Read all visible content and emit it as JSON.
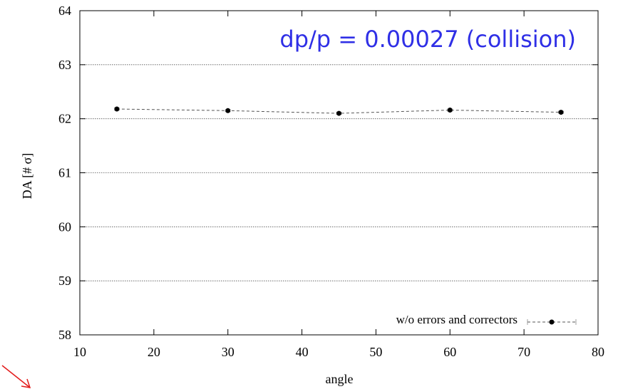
{
  "chart_data": {
    "type": "line",
    "title": "",
    "xlabel": "angle",
    "ylabel": "DA [# σ]",
    "xlim": [
      10,
      80
    ],
    "ylim": [
      58,
      64
    ],
    "xticks": [
      10,
      20,
      30,
      40,
      50,
      60,
      70,
      80
    ],
    "yticks": [
      58,
      59,
      60,
      61,
      62,
      63,
      64
    ],
    "grid": "horizontal-dotted",
    "legend_position": "bottom-right",
    "annotation": "dp/p = 0.00027 (collision)",
    "series": [
      {
        "name": "w/o errors and correctors",
        "x": [
          15,
          30,
          45,
          60,
          75
        ],
        "y": [
          62.18,
          62.15,
          62.1,
          62.16,
          62.12
        ]
      }
    ]
  },
  "colors": {
    "annotation": "#2f2fe6",
    "series_marker": "#000000",
    "series_line": "#555555",
    "grid": "#555555",
    "arrow": "#e31b1b"
  }
}
